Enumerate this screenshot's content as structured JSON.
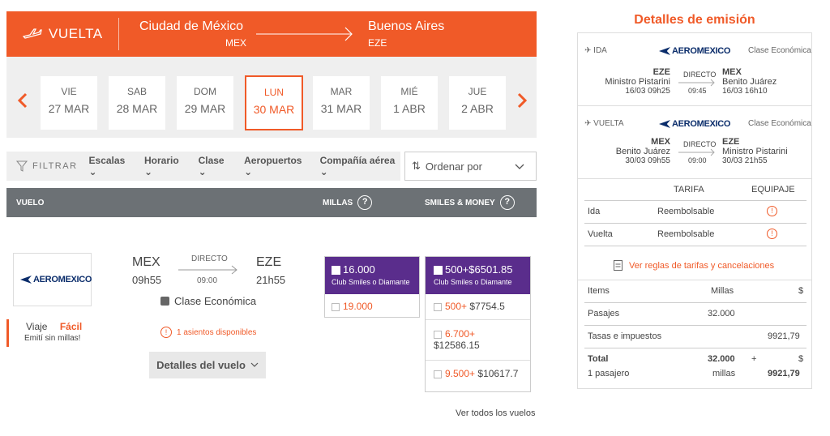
{
  "header": {
    "label": "VUELTA",
    "origin_city": "Ciudad de México",
    "origin_code": "MEX",
    "dest_city": "Buenos Aires",
    "dest_code": "EZE"
  },
  "dates": [
    {
      "dow": "VIE",
      "dm": "27 MAR"
    },
    {
      "dow": "SAB",
      "dm": "28 MAR"
    },
    {
      "dow": "DOM",
      "dm": "29 MAR"
    },
    {
      "dow": "LUN",
      "dm": "30 MAR"
    },
    {
      "dow": "MAR",
      "dm": "31 MAR"
    },
    {
      "dow": "MIÉ",
      "dm": "1 ABR"
    },
    {
      "dow": "JUE",
      "dm": "2 ABR"
    }
  ],
  "filters": {
    "label": "FILTRAR",
    "items": [
      "Escalas",
      "Horario",
      "Clase",
      "Aeropuertos",
      "Compañía aérea"
    ],
    "order_label": "Ordenar por"
  },
  "table_header": {
    "flight": "VUELO",
    "miles": "MILLAS",
    "smiles_money": "SMILES & MONEY"
  },
  "flight": {
    "airline": "AEROMEXICO",
    "from_code": "MEX",
    "from_time": "09h55",
    "type": "DIRECTO",
    "duration": "09:00",
    "to_code": "EZE",
    "to_time": "21h55",
    "cabin": "Clase Económica",
    "seats": "1 asientos disponibles",
    "promo_1": "Viaje",
    "promo_2": "Fácil",
    "promo_3": "Emití sin millas!",
    "details_btn": "Detalles del vuelo"
  },
  "miles_options": {
    "club_value": "16.000",
    "club_label": "Club Smiles o Diamante",
    "regular_value": "19.000"
  },
  "money_options": {
    "club_miles": "500+",
    "club_money": "$6501.85",
    "club_label": "Club Smiles o Diamante",
    "rows": [
      {
        "miles": "500+",
        "money": "$7754.5"
      },
      {
        "miles": "6.700+",
        "money": "$12586.15"
      },
      {
        "miles": "9.500+",
        "money": "$10617.7"
      }
    ]
  },
  "see_all": "Ver todos los vuelos",
  "summary": {
    "title": "Detalles de emisión",
    "legs": [
      {
        "label": "IDA",
        "airline": "AEROMEXICO",
        "cabin": "Clase Económica",
        "from_code": "EZE",
        "from_name": "Ministro Pistarini",
        "from_dt": "16/03 09h25",
        "type": "DIRECTO",
        "dur": "09:45",
        "to_code": "MEX",
        "to_name": "Benito Juárez",
        "to_dt": "16/03 16h10"
      },
      {
        "label": "VUELTA",
        "airline": "AEROMEXICO",
        "cabin": "Clase Económica",
        "from_code": "MEX",
        "from_name": "Benito Juárez",
        "from_dt": "30/03 09h55",
        "type": "DIRECTO",
        "dur": "09:00",
        "to_code": "EZE",
        "to_name": "Ministro Pistarini",
        "to_dt": "30/03 21h55"
      }
    ],
    "tariff_header": "TARIFA",
    "baggage_header": "EQUIPAJE",
    "tariff_rows": [
      {
        "leg": "Ida",
        "tariff": "Reembolsable"
      },
      {
        "leg": "Vuelta",
        "tariff": "Reembolsable"
      }
    ],
    "rules_link": "Ver reglas de tarifas y cancelaciones",
    "cost": {
      "items": "Items",
      "miles": "Millas",
      "money": "$",
      "pasajes": "Pasajes",
      "pasajes_miles": "32.000",
      "tasas": "Tasas e impuestos",
      "tasas_money": "9921,79",
      "total": "Total",
      "total_miles": "32.000",
      "plus": "+",
      "total_money_sym": "$",
      "passengers": "1 pasajero",
      "miles_word": "millas",
      "total_money": "9921,79"
    }
  },
  "colors": {
    "accent": "#f05a28",
    "purple": "#5a2d8c",
    "header_gray": "#6c7175"
  }
}
